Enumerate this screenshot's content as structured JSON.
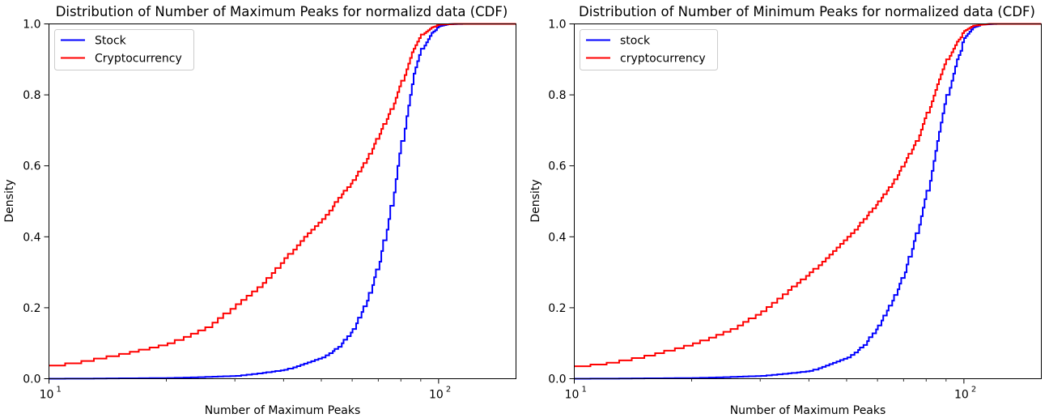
{
  "chart_data": [
    {
      "type": "line",
      "title": "Distribution of Number of Maximum Peaks for normalizd data (CDF)",
      "xlabel": "Number of Maximum Peaks",
      "ylabel": "Density",
      "xscale": "log",
      "xlim": [
        10,
        158
      ],
      "ylim": [
        0,
        1.0
      ],
      "x_major_ticks": [
        10,
        100
      ],
      "x_tick_labels": [
        {
          "base": "10",
          "exp": "1"
        },
        {
          "base": "10",
          "exp": "2"
        }
      ],
      "y_ticks": [
        0.0,
        0.2,
        0.4,
        0.6,
        0.8,
        1.0
      ],
      "y_tick_labels": [
        "0.0",
        "0.2",
        "0.4",
        "0.6",
        "0.8",
        "1.0"
      ],
      "legend_position": "top-left",
      "series": [
        {
          "name": "Stock",
          "color": "#0000ff",
          "points": [
            [
              10,
              0.0
            ],
            [
              20,
              0.002
            ],
            [
              30,
              0.008
            ],
            [
              40,
              0.025
            ],
            [
              50,
              0.06
            ],
            [
              55,
              0.09
            ],
            [
              60,
              0.14
            ],
            [
              65,
              0.22
            ],
            [
              70,
              0.33
            ],
            [
              74,
              0.45
            ],
            [
              78,
              0.6
            ],
            [
              82,
              0.74
            ],
            [
              86,
              0.86
            ],
            [
              90,
              0.93
            ],
            [
              95,
              0.975
            ],
            [
              100,
              0.993
            ],
            [
              105,
              0.999
            ],
            [
              115,
              1.0
            ]
          ]
        },
        {
          "name": "Cryptocurrency",
          "color": "#ff0000",
          "points": [
            [
              10,
              0.037
            ],
            [
              12,
              0.05
            ],
            [
              15,
              0.07
            ],
            [
              20,
              0.1
            ],
            [
              25,
              0.145
            ],
            [
              30,
              0.21
            ],
            [
              35,
              0.27
            ],
            [
              40,
              0.34
            ],
            [
              45,
              0.4
            ],
            [
              50,
              0.45
            ],
            [
              55,
              0.51
            ],
            [
              60,
              0.56
            ],
            [
              65,
              0.62
            ],
            [
              70,
              0.69
            ],
            [
              75,
              0.76
            ],
            [
              80,
              0.84
            ],
            [
              85,
              0.92
            ],
            [
              90,
              0.97
            ],
            [
              95,
              0.99
            ],
            [
              100,
              0.998
            ],
            [
              110,
              1.0
            ]
          ]
        }
      ]
    },
    {
      "type": "line",
      "title": "Distribution of Number of Minimum Peaks for normalized data (CDF)",
      "xlabel": "Number of Maximum Peaks",
      "ylabel": "Density",
      "xscale": "log",
      "xlim": [
        10,
        158
      ],
      "ylim": [
        0,
        1.0
      ],
      "x_major_ticks": [
        10,
        100
      ],
      "x_tick_labels": [
        {
          "base": "10",
          "exp": "1"
        },
        {
          "base": "10",
          "exp": "2"
        }
      ],
      "y_ticks": [
        0.0,
        0.2,
        0.4,
        0.6,
        0.8,
        1.0
      ],
      "y_tick_labels": [
        "0.0",
        "0.2",
        "0.4",
        "0.6",
        "0.8",
        "1.0"
      ],
      "legend_position": "top-left",
      "series": [
        {
          "name": "stock",
          "color": "#0000ff",
          "points": [
            [
              10,
              0.0
            ],
            [
              20,
              0.002
            ],
            [
              30,
              0.008
            ],
            [
              40,
              0.022
            ],
            [
              50,
              0.06
            ],
            [
              55,
              0.095
            ],
            [
              60,
              0.15
            ],
            [
              65,
              0.22
            ],
            [
              70,
              0.3
            ],
            [
              75,
              0.41
            ],
            [
              80,
              0.53
            ],
            [
              85,
              0.67
            ],
            [
              90,
              0.8
            ],
            [
              95,
              0.9
            ],
            [
              100,
              0.96
            ],
            [
              105,
              0.99
            ],
            [
              110,
              0.998
            ],
            [
              120,
              1.0
            ]
          ]
        },
        {
          "name": "cryptocurrency",
          "color": "#ff0000",
          "points": [
            [
              10,
              0.035
            ],
            [
              12,
              0.045
            ],
            [
              15,
              0.065
            ],
            [
              20,
              0.1
            ],
            [
              25,
              0.14
            ],
            [
              30,
              0.19
            ],
            [
              35,
              0.25
            ],
            [
              40,
              0.3
            ],
            [
              45,
              0.35
            ],
            [
              50,
              0.4
            ],
            [
              55,
              0.45
            ],
            [
              60,
              0.5
            ],
            [
              65,
              0.55
            ],
            [
              70,
              0.61
            ],
            [
              75,
              0.67
            ],
            [
              80,
              0.75
            ],
            [
              85,
              0.83
            ],
            [
              90,
              0.9
            ],
            [
              95,
              0.95
            ],
            [
              100,
              0.98
            ],
            [
              105,
              0.995
            ],
            [
              115,
              1.0
            ]
          ]
        }
      ]
    }
  ]
}
